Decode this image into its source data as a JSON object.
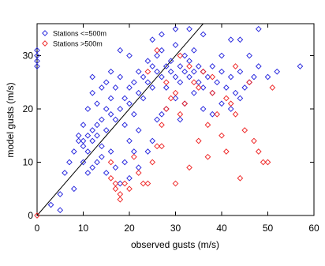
{
  "chart_data": {
    "type": "scatter",
    "x_label": "observed gusts (m/s)",
    "y_label": "model gusts (m/s)",
    "xlim": [
      0,
      60
    ],
    "ylim": [
      0,
      36
    ],
    "xticks": [
      0,
      10,
      20,
      30,
      40,
      50,
      60
    ],
    "yticks": [
      0,
      10,
      20,
      30
    ],
    "grid": false,
    "legend": "top-left",
    "reference_line": "1:1",
    "series": [
      {
        "name": "Stations <=500m",
        "color": "#2222dd",
        "x": [
          0,
          0,
          0,
          0,
          5,
          6,
          7,
          8,
          9,
          10,
          10,
          11,
          11,
          12,
          12,
          13,
          13,
          14,
          14,
          15,
          15,
          16,
          16,
          17,
          17,
          18,
          18,
          19,
          19,
          20,
          20,
          21,
          21,
          22,
          22,
          23,
          23,
          24,
          24,
          25,
          25,
          26,
          26,
          27,
          27,
          28,
          28,
          29,
          29,
          30,
          30,
          31,
          31,
          32,
          32,
          33,
          33,
          34,
          34,
          35,
          35,
          36,
          36,
          37,
          38,
          38,
          39,
          40,
          41,
          42,
          43,
          44,
          45,
          46,
          47,
          48,
          50,
          52,
          57,
          10,
          11,
          12,
          13,
          14,
          15,
          16,
          17,
          18,
          19,
          20,
          21,
          22,
          20,
          22,
          24,
          25,
          26,
          27,
          28,
          30,
          31,
          32,
          34,
          36,
          38,
          40,
          42,
          44,
          40,
          42,
          44,
          46,
          48,
          36,
          33,
          30,
          27,
          25,
          20,
          18,
          16,
          15,
          12,
          11,
          10,
          9,
          13,
          14,
          12,
          8,
          5,
          3
        ],
        "values": [
          30,
          29,
          31,
          28,
          4,
          8,
          10,
          12,
          14,
          14,
          13,
          15,
          12,
          16,
          14,
          17,
          15,
          18,
          13,
          20,
          16,
          19,
          22,
          18,
          24,
          20,
          26,
          22,
          17,
          24,
          21,
          25,
          19,
          27,
          23,
          26,
          22,
          29,
          25,
          28,
          24,
          30,
          27,
          26,
          31,
          28,
          24,
          29,
          27,
          32,
          26,
          28,
          25,
          30,
          27,
          26,
          29,
          27,
          31,
          25,
          28,
          24,
          27,
          26,
          23,
          28,
          25,
          27,
          24,
          26,
          23,
          27,
          24,
          25,
          26,
          28,
          26,
          27,
          28,
          10,
          8,
          9,
          10,
          11,
          8,
          12,
          9,
          6,
          10,
          7,
          12,
          9,
          14,
          16,
          12,
          14,
          18,
          19,
          20,
          22,
          18,
          21,
          23,
          20,
          19,
          21,
          20,
          22,
          30,
          33,
          33,
          30,
          35,
          34,
          35,
          35,
          34,
          33,
          30,
          31,
          27,
          25,
          23,
          20,
          17,
          15,
          21,
          24,
          26,
          5,
          1,
          2
        ]
      },
      {
        "name": "Stations >500m",
        "color": "#ee2222",
        "x": [
          0,
          16,
          16,
          17,
          17,
          18,
          18,
          19,
          20,
          21,
          22,
          23,
          24,
          25,
          26,
          27,
          28,
          28,
          29,
          30,
          31,
          32,
          33,
          34,
          35,
          36,
          37,
          37,
          38,
          39,
          40,
          41,
          41,
          42,
          43,
          44,
          45,
          46,
          47,
          48,
          49,
          50,
          51,
          27,
          30,
          33,
          35,
          38,
          43,
          31,
          26,
          24
        ],
        "values": [
          0,
          7,
          10,
          5,
          6,
          4,
          3,
          6,
          5,
          11,
          8,
          6,
          6,
          10,
          13,
          17,
          20,
          25,
          22,
          23,
          19,
          21,
          28,
          25,
          24,
          27,
          11,
          17,
          23,
          19,
          15,
          22,
          12,
          21,
          19,
          7,
          16,
          25,
          14,
          12,
          10,
          10,
          24,
          13,
          6,
          9,
          14,
          26,
          28,
          30,
          31,
          27
        ]
      }
    ]
  }
}
